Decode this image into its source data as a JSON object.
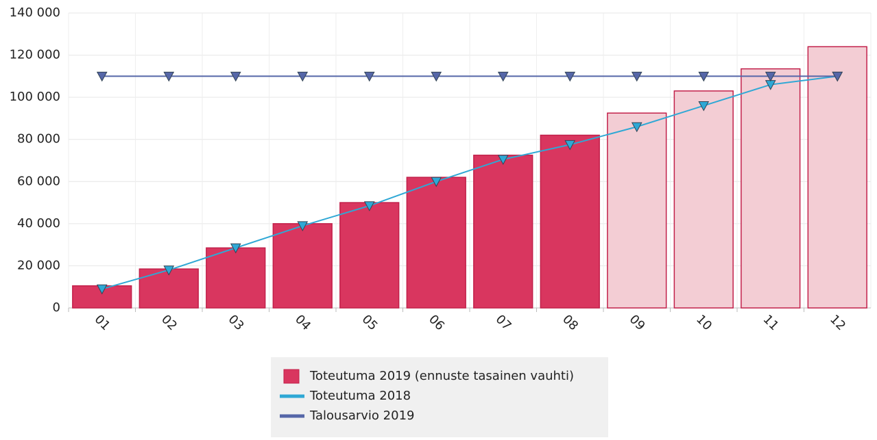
{
  "chart_data": {
    "type": "bar",
    "categories": [
      "01",
      "02",
      "03",
      "04",
      "05",
      "06",
      "07",
      "08",
      "09",
      "10",
      "11",
      "12"
    ],
    "series": [
      {
        "name": "Toteutuma 2019 (ennuste tasainen vauhti)",
        "type": "bar",
        "color": "#d9365f",
        "colors": [
          "#d9365f",
          "#d9365f",
          "#d9365f",
          "#d9365f",
          "#d9365f",
          "#d9365f",
          "#d9365f",
          "#d9365f",
          "#f3cdd4",
          "#f3cdd4",
          "#f3cdd4",
          "#f3cdd4"
        ],
        "values": [
          10500,
          18500,
          28500,
          40000,
          50000,
          62000,
          72500,
          82000,
          92500,
          103000,
          113500,
          124000
        ]
      },
      {
        "name": "Toteutuma 2018",
        "type": "line",
        "color": "#2fa8d5",
        "values": [
          9000,
          18000,
          28500,
          39000,
          48500,
          60000,
          70500,
          77500,
          86000,
          96000,
          106000,
          110000
        ]
      },
      {
        "name": "Talousarvio 2019",
        "type": "line",
        "color": "#5566a8",
        "values": [
          110000,
          110000,
          110000,
          110000,
          110000,
          110000,
          110000,
          110000,
          110000,
          110000,
          110000,
          110000
        ]
      }
    ],
    "ylim": [
      0,
      140000
    ],
    "yticks": [
      {
        "value": 0,
        "label": "0"
      },
      {
        "value": 20000,
        "label": "20 000"
      },
      {
        "value": 40000,
        "label": "40 000"
      },
      {
        "value": 60000,
        "label": "60 000"
      },
      {
        "value": 80000,
        "label": "80 000"
      },
      {
        "value": 100000,
        "label": "100 000"
      },
      {
        "value": 120000,
        "label": "120 000"
      },
      {
        "value": 140000,
        "label": "140 000"
      }
    ],
    "grid": true,
    "legend": "bottom"
  }
}
